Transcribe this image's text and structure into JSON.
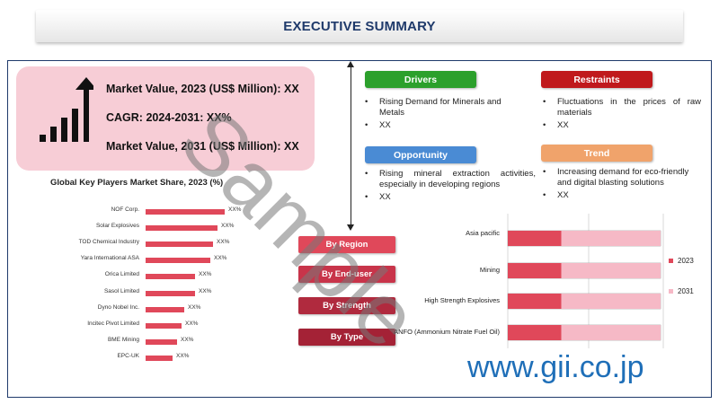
{
  "title": "EXECUTIVE SUMMARY",
  "kpis": {
    "market_value_2023": "Market Value, 2023 (US$ Million): XX",
    "cagr": "CAGR: 2024-2031: XX%",
    "market_value_2031": "Market Value, 2031 (US$ Million): XX"
  },
  "players": {
    "title": "Global Key Players Market Share, 2023 (%)",
    "items": [
      {
        "name": "NOF Corp.",
        "value": "XX%",
        "share": 0.88
      },
      {
        "name": "Solar Explosives",
        "value": "XX%",
        "share": 0.8
      },
      {
        "name": "TOD Chemical Industry",
        "value": "XX%",
        "share": 0.75
      },
      {
        "name": "Yara International ASA",
        "value": "XX%",
        "share": 0.72
      },
      {
        "name": "Orica Limited",
        "value": "XX%",
        "share": 0.55
      },
      {
        "name": "Sasol Limited",
        "value": "XX%",
        "share": 0.55
      },
      {
        "name": "Dyno Nobel Inc.",
        "value": "XX%",
        "share": 0.43
      },
      {
        "name": "Incitec Pivot Limited",
        "value": "XX%",
        "share": 0.4
      },
      {
        "name": "BME Mining",
        "value": "XX%",
        "share": 0.35
      },
      {
        "name": "EPC-UK",
        "value": "XX%",
        "share": 0.3
      }
    ]
  },
  "drivers": {
    "label": "Drivers",
    "color": "#2ca02c",
    "items": [
      "Rising Demand for Minerals and Metals",
      "XX"
    ]
  },
  "restraints": {
    "label": "Restraints",
    "color": "#c0191c",
    "items": [
      "Fluctuations in the prices of raw materials",
      "XX"
    ]
  },
  "opportunity": {
    "label": "Opportunity",
    "color": "#4a8bd4",
    "items": [
      "Rising mineral extraction activities, especially in developing regions",
      "XX"
    ]
  },
  "trend": {
    "label": "Trend",
    "color": "#f0a36b",
    "items": [
      "Increasing demand for eco-friendly and digital blasting solutions",
      "XX"
    ]
  },
  "segments": [
    {
      "pill": "By Region",
      "label": "Asia pacific",
      "color": "#e0485a"
    },
    {
      "pill": "By End-user",
      "label": "Mining",
      "color": "#c8344a"
    },
    {
      "pill": "By Strength",
      "label": "High Strength Explosives",
      "color": "#b02a3e"
    },
    {
      "pill": "By Type",
      "label": "ANFO (Ammonium Nitrate Fuel Oil)",
      "color": "#a42236"
    }
  ],
  "chart_data": {
    "type": "bar",
    "categories": [
      "Asia pacific",
      "Mining",
      "High Strength Explosives",
      "ANFO (Ammonium Nitrate Fuel Oil)"
    ],
    "series": [
      {
        "name": "2023",
        "color": "#e0485a",
        "values": [
          0.35,
          0.35,
          0.35,
          0.35
        ]
      },
      {
        "name": "2031",
        "color": "#f6b9c6",
        "values": [
          0.65,
          0.65,
          0.65,
          0.65
        ]
      }
    ]
  },
  "watermark": "Sample",
  "site": "www.gii.co.jp"
}
